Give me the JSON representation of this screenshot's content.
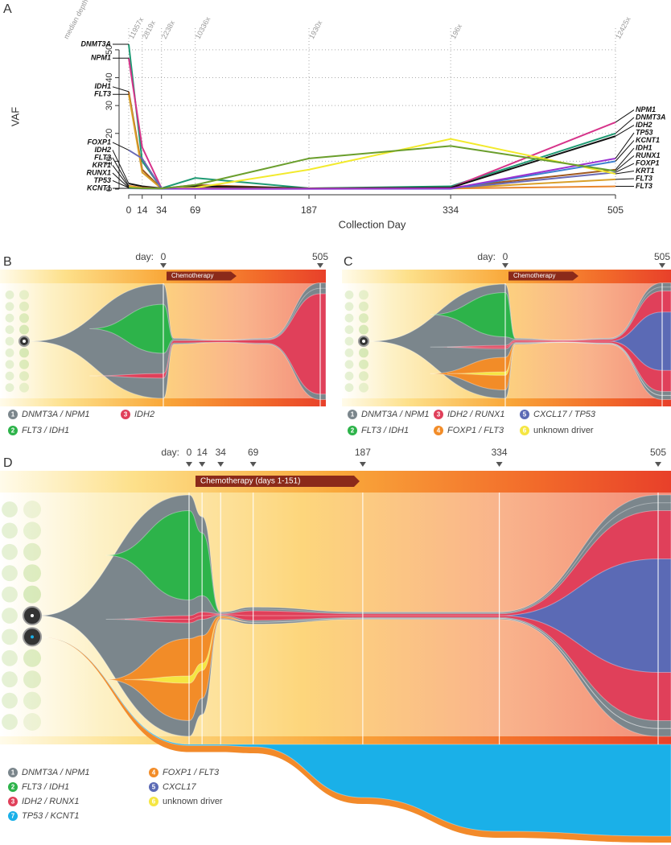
{
  "chart_data": [
    {
      "type": "line",
      "panel": "A",
      "x": [
        0,
        14,
        34,
        69,
        187,
        334,
        505
      ],
      "xlim": [
        0,
        505
      ],
      "xticks": [
        0,
        14,
        34,
        69,
        187,
        334,
        505
      ],
      "ylim": [
        0,
        52
      ],
      "yticks": [
        0,
        10,
        20,
        30,
        40,
        50
      ],
      "grid": true,
      "xlabel": "Collection Day",
      "ylabel": "VAF",
      "depth_title": "median depth",
      "depth_labels": [
        "11957x",
        "2819x",
        "2238x",
        "10336x",
        "1930x",
        "196x",
        "12425x"
      ],
      "series": [
        {
          "name": "DNMT3A",
          "color": "#1e9a73",
          "values": [
            52,
            10,
            0.3,
            4,
            0.3,
            1,
            20
          ]
        },
        {
          "name": "NPM1",
          "color": "#d6338a",
          "values": [
            47,
            15,
            0.3,
            1,
            0.2,
            0.5,
            24
          ]
        },
        {
          "name": "IDH1",
          "color": "#a0581f",
          "values": [
            35,
            7,
            0.2,
            1.5,
            0.2,
            0.5,
            7
          ]
        },
        {
          "name": "FLT3",
          "color": "#d9a02a",
          "values": [
            34,
            6,
            0.2,
            1,
            0.2,
            0.3,
            3.5
          ]
        },
        {
          "name": "FOXP1",
          "color": "#6a6ab4",
          "values": [
            14,
            11,
            0.2,
            0.5,
            0.2,
            0.2,
            6
          ]
        },
        {
          "name": "IDH2",
          "color": "#111111",
          "values": [
            2,
            1,
            0.3,
            1,
            0.3,
            0.5,
            19
          ]
        },
        {
          "name": "FLT3",
          "color": "#e8862e",
          "values": [
            1.2,
            0.5,
            0.2,
            0.3,
            0.2,
            0.2,
            1
          ]
        },
        {
          "name": "KRT1",
          "color": "#f2ea2c",
          "values": [
            0.8,
            0.3,
            0.2,
            0.5,
            7,
            18,
            5.5
          ]
        },
        {
          "name": "KCNT1",
          "color": "#3d7fcf",
          "values": [
            0.3,
            0.2,
            0.1,
            0.1,
            0.1,
            0.1,
            10
          ]
        },
        {
          "name": "TP53",
          "color": "#9b30d0",
          "values": [
            0.5,
            0.2,
            0.2,
            0.1,
            0.1,
            0.2,
            11
          ]
        },
        {
          "name": "RUNX1",
          "color": "#6a9e2c",
          "values": [
            0.5,
            0.3,
            0.2,
            1.5,
            11,
            15.5,
            6.5
          ]
        }
      ]
    },
    {
      "type": "fish",
      "panel": "B",
      "day_label": "day:",
      "annotation": "Chemotherapy",
      "x": [
        0,
        34,
        187,
        334,
        505
      ],
      "xlim": [
        0,
        505
      ],
      "xticks": [
        0,
        505
      ],
      "series": [
        {
          "id": 1,
          "name": "DNMT3A / NPM1",
          "color": "#7b868c",
          "parent": null,
          "values": [
            98,
            5,
            2,
            5,
            100
          ]
        },
        {
          "id": 2,
          "name": "FLT3 / IDH1",
          "color": "#2db34a",
          "parent": 1,
          "values": [
            42,
            0,
            0,
            0,
            0
          ]
        },
        {
          "id": 3,
          "name": "IDH2",
          "color": "#e0405a",
          "parent": 1,
          "values": [
            4,
            2,
            1.5,
            3,
            86
          ]
        }
      ]
    },
    {
      "type": "fish",
      "panel": "C",
      "day_label": "day:",
      "annotation": "Chemotherapy",
      "x": [
        0,
        34,
        187,
        334,
        505
      ],
      "xlim": [
        0,
        505
      ],
      "xticks": [
        0,
        505
      ],
      "series": [
        {
          "id": 1,
          "name": "DNMT3A / NPM1",
          "color": "#7b868c",
          "parent": null,
          "values": [
            98,
            5,
            2,
            5,
            100
          ]
        },
        {
          "id": 2,
          "name": "FLT3 / IDH1",
          "color": "#2db34a",
          "parent": 1,
          "values": [
            38,
            0,
            0,
            0,
            0
          ]
        },
        {
          "id": 3,
          "name": "IDH2 / RUNX1",
          "color": "#e0405a",
          "parent": 1,
          "values": [
            3,
            2,
            1.5,
            3,
            86
          ]
        },
        {
          "id": 4,
          "name": "FOXP1 / FLT3",
          "color": "#f28c28",
          "parent": 1,
          "values": [
            28,
            0,
            0,
            0,
            0
          ]
        },
        {
          "id": 5,
          "name": "CXCL17 / TP53",
          "color": "#5b6ab5",
          "parent": 3,
          "values": [
            0,
            0,
            0,
            0,
            50
          ]
        },
        {
          "id": 6,
          "name": "unknown driver",
          "color": "#f5e642",
          "parent": 4,
          "values": [
            3,
            0,
            0,
            0,
            0
          ]
        }
      ]
    },
    {
      "type": "fish",
      "panel": "D",
      "day_label": "day:",
      "annotation": "Chemotherapy (days 1-151)",
      "x": [
        0,
        14,
        34,
        69,
        187,
        334,
        505
      ],
      "xlim": [
        0,
        505
      ],
      "xticks": [
        0,
        14,
        34,
        69,
        187,
        334,
        505
      ],
      "series": [
        {
          "id": 1,
          "name": "DNMT3A / NPM1",
          "color": "#7b868c",
          "parent": null,
          "values": [
            100,
            82,
            3,
            7,
            3,
            3,
            100
          ]
        },
        {
          "id": 2,
          "name": "FLT3 / IDH1",
          "color": "#2db34a",
          "parent": 1,
          "values": [
            37,
            26,
            0,
            0,
            0,
            0,
            0
          ]
        },
        {
          "id": 3,
          "name": "IDH2 / RUNX1",
          "color": "#e0405a",
          "parent": 1,
          "values": [
            3,
            3,
            0.5,
            4,
            1.5,
            1.5,
            87
          ]
        },
        {
          "id": 7,
          "name": "TP53 / KCNT1",
          "color": "#1ab0e8",
          "parent": null,
          "values": [
            0,
            0,
            0,
            1,
            22,
            36,
            38
          ]
        },
        {
          "id": 4,
          "name": "FOXP1 / FLT3",
          "color": "#f28c28",
          "parent": 1,
          "values": [
            34,
            26,
            1,
            0,
            0,
            0,
            0
          ]
        },
        {
          "id": 5,
          "name": "CXCL17",
          "color": "#5b6ab5",
          "parent": 3,
          "values": [
            0,
            0,
            0,
            0,
            0,
            0,
            47
          ]
        },
        {
          "id": 6,
          "name": "unknown driver",
          "color": "#f5e642",
          "parent": 4,
          "values": [
            3,
            3,
            0,
            0,
            0,
            0,
            0
          ]
        }
      ]
    }
  ]
}
